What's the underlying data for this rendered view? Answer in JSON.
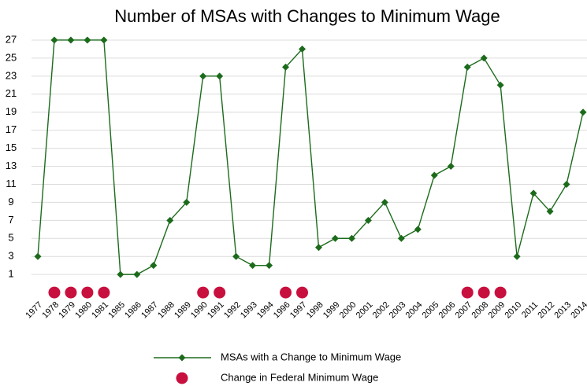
{
  "chart_data": {
    "type": "line",
    "title": "Number of MSAs with Changes to Minimum Wage",
    "categories": [
      "1977",
      "1978",
      "1979",
      "1980",
      "1981",
      "1985",
      "1986",
      "1987",
      "1988",
      "1989",
      "1990",
      "1991",
      "1992",
      "1993",
      "1994",
      "1996",
      "1997",
      "1998",
      "1999",
      "2000",
      "2001",
      "2002",
      "2003",
      "2004",
      "2005",
      "2006",
      "2007",
      "2008",
      "2009",
      "2010",
      "2011",
      "2012",
      "2013",
      "2014"
    ],
    "series": [
      {
        "name": "MSAs with a Change to Minimum Wage",
        "color": "#1c6b1c",
        "marker": "diamond",
        "line": true,
        "values": [
          3,
          27,
          27,
          27,
          27,
          1,
          1,
          2,
          7,
          9,
          23,
          23,
          3,
          2,
          2,
          24,
          26,
          4,
          5,
          5,
          7,
          9,
          5,
          6,
          12,
          13,
          24,
          25,
          22,
          3,
          10,
          8,
          11,
          19
        ]
      },
      {
        "name": "Change in Federal Minimum Wage",
        "color": "#c8103e",
        "marker": "circle",
        "line": false,
        "values": [
          null,
          -1,
          -1,
          -1,
          -1,
          null,
          null,
          null,
          null,
          null,
          -1,
          -1,
          null,
          null,
          null,
          -1,
          -1,
          null,
          null,
          null,
          null,
          null,
          null,
          null,
          null,
          null,
          -1,
          -1,
          -1,
          null,
          null,
          null,
          null,
          null
        ]
      }
    ],
    "ylim": [
      -3,
      28
    ],
    "yticks": [
      1,
      3,
      5,
      7,
      9,
      11,
      13,
      15,
      17,
      19,
      21,
      23,
      25,
      27
    ],
    "grid": true
  }
}
